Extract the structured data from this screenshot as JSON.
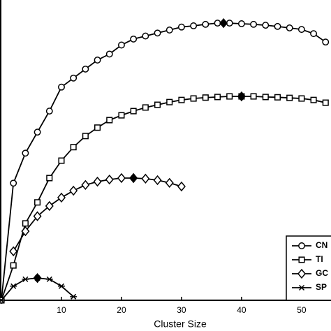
{
  "chart_data": {
    "type": "line",
    "x_label": "Cluster Size",
    "x": [
      0,
      2,
      4,
      6,
      8,
      10,
      12,
      14,
      16,
      18,
      20,
      22,
      24,
      26,
      28,
      30,
      32,
      34,
      36,
      38,
      40,
      42,
      44,
      46,
      48,
      50,
      52,
      54
    ],
    "xlim": [
      0,
      54.9
    ],
    "ylim": [
      0,
      100
    ],
    "xticks": [
      10,
      20,
      30,
      40,
      50
    ],
    "legend": "bottom-right",
    "series": [
      {
        "name": "CN",
        "marker": "circle",
        "color": "#000000",
        "values": [
          0,
          39,
          49,
          56,
          63,
          71,
          74,
          77,
          80,
          82,
          85,
          87,
          88,
          89,
          90,
          91,
          91.4,
          91.9,
          92.3,
          92.3,
          92.1,
          91.9,
          91.6,
          91.2,
          90.7,
          90.2,
          88.8,
          86
        ],
        "peak": {
          "x": 37,
          "y": 92.3
        }
      },
      {
        "name": "TI",
        "marker": "square",
        "color": "#000000",
        "values": [
          0,
          11.6,
          25.6,
          32.6,
          40.7,
          46.5,
          51,
          54.7,
          57.5,
          60,
          61.6,
          63,
          64.2,
          65.1,
          66,
          66.7,
          67.2,
          67.5,
          67.7,
          67.9,
          67.9,
          67.9,
          67.7,
          67.6,
          67.4,
          67.2,
          66.7,
          65.8
        ],
        "peak": {
          "x": 40,
          "y": 67.9
        }
      },
      {
        "name": "GC",
        "marker": "diamond",
        "color": "#000000",
        "values": [
          null,
          16.3,
          23,
          28,
          31.4,
          34.2,
          36.5,
          38.4,
          39.5,
          40.2,
          40.7,
          40.7,
          40.5,
          40,
          39.1,
          37.9,
          null,
          null,
          null,
          null,
          null,
          null,
          null,
          null,
          null,
          null,
          null,
          null
        ],
        "peak": {
          "x": 22,
          "y": 40.7
        }
      },
      {
        "name": "SP",
        "marker": "star",
        "color": "#000000",
        "values": [
          0,
          4.7,
          7,
          7.4,
          7,
          4.7,
          1.2,
          null,
          null,
          null,
          null,
          null,
          null,
          null,
          null,
          null,
          null,
          null,
          null,
          null,
          null,
          null,
          null,
          null,
          null,
          null,
          null,
          null
        ],
        "peak": {
          "x": 6,
          "y": 7.4
        }
      }
    ]
  }
}
